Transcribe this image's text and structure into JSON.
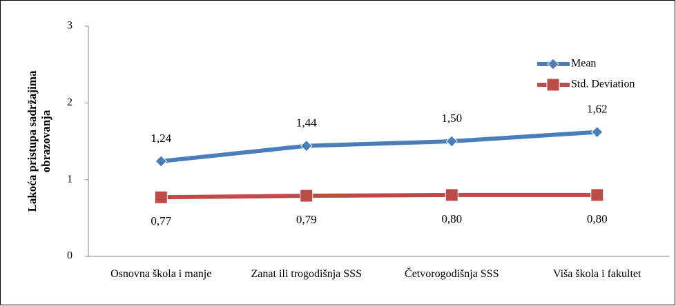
{
  "chart_data": {
    "type": "line",
    "y_label": "Lakoća pristupa sadržajima obrazovanja",
    "categories": [
      "Osnovna škola i manje",
      "Zanat ili trogodišnja SSS",
      "Četvorogodišnja SSS",
      "Viša škola i fakultet"
    ],
    "series": [
      {
        "name": "Mean",
        "color": "#4a7ebb",
        "label_color": "#2e75b6",
        "marker": "diamond",
        "values": [
          1.24,
          1.44,
          1.5,
          1.62
        ],
        "value_labels": [
          "1,24",
          "1,44",
          "1,50",
          "1,62"
        ]
      },
      {
        "name": "Std. Deviation",
        "color": "#be4b48",
        "label_color": "#c0282d",
        "marker": "square",
        "values": [
          0.77,
          0.79,
          0.8,
          0.8
        ],
        "value_labels": [
          "0,77",
          "0,79",
          "0,80",
          "0,80"
        ]
      }
    ],
    "ylim": [
      0,
      3
    ],
    "yticks": [
      0,
      1,
      2,
      3
    ],
    "grid": false,
    "legend": "upper right"
  }
}
